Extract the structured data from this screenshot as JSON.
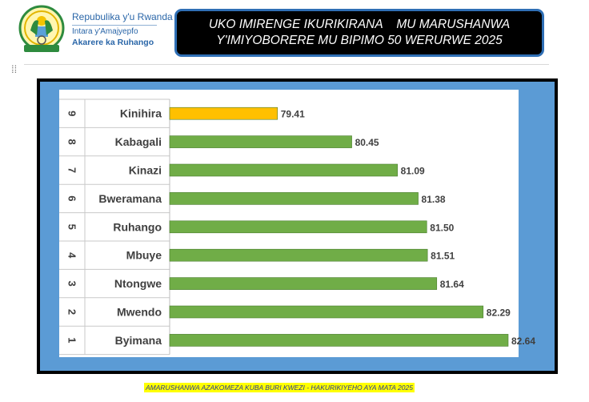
{
  "header": {
    "gov_line1": "Repubulika y'u Rwanda",
    "gov_line2": "Intara y'Amajyepfo",
    "gov_line3": "Akarere ka Ruhango",
    "title_line1": "UKO IMIRENGE IKURIKIRANA    MU MARUSHANWA",
    "title_line2": "Y'IMIYOBORERE MU BIPIMO 50 WERURWE 2025"
  },
  "footer": {
    "note": "AMARUSHANWA AZAKOMEZA KUBA BURI KWEZI - HAKURIKIYEHO AYA MATA 2025"
  },
  "colors": {
    "green_bar": "#70ad47",
    "highlight_bar": "#ffc000",
    "frame_blue": "#5b9bd5"
  },
  "chart_data": {
    "type": "bar",
    "orientation": "horizontal",
    "ranks": [
      "9",
      "8",
      "7",
      "6",
      "5",
      "4",
      "3",
      "2",
      "1"
    ],
    "categories": [
      "Kinihira",
      "Kabagali",
      "Kinazi",
      "Bweramana",
      "Ruhango",
      "Mbuye",
      "Ntongwe",
      "Mwendo",
      "Byimana"
    ],
    "values": [
      79.41,
      80.45,
      81.09,
      81.38,
      81.5,
      81.51,
      81.64,
      82.29,
      82.64
    ],
    "value_labels": [
      "79.41",
      "80.45",
      "81.09",
      "81.38",
      "81.50",
      "81.51",
      "81.64",
      "82.29",
      "82.64"
    ],
    "highlight_index": 0,
    "xlim": [
      77.9,
      82.64
    ]
  }
}
